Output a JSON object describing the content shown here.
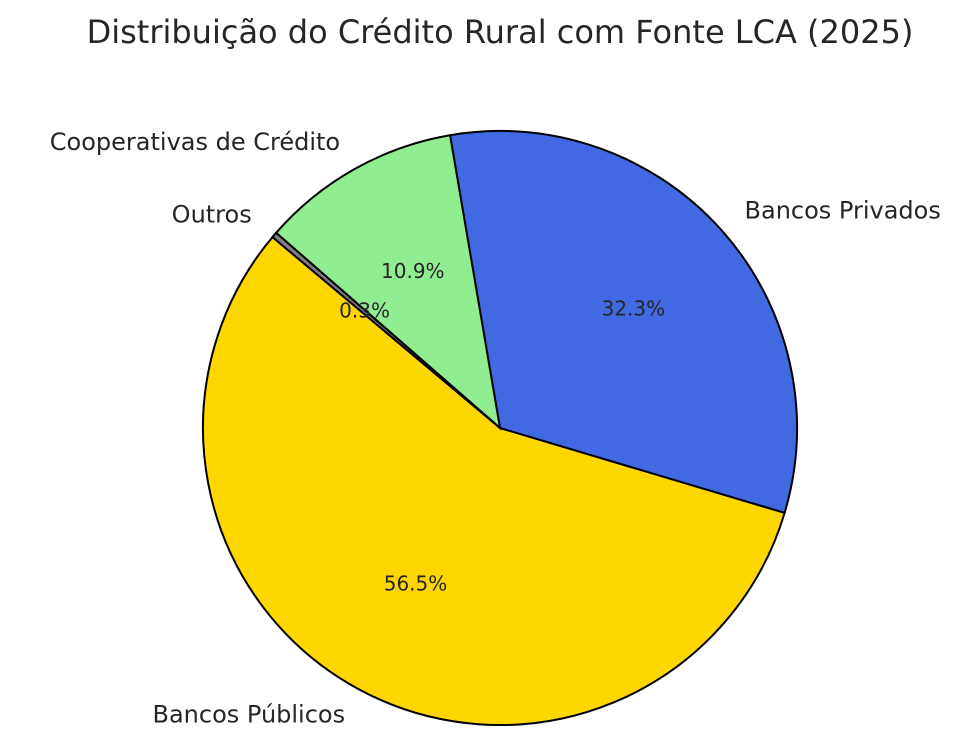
{
  "chart_data": {
    "type": "pie",
    "title": "Distribuição do Crédito Rural com Fonte LCA (2025)",
    "categories": [
      "Bancos Públicos",
      "Bancos Privados",
      "Cooperativas de Crédito",
      "Outros"
    ],
    "values": [
      56.5,
      32.3,
      10.9,
      0.3
    ],
    "value_labels": [
      "56.5%",
      "32.3%",
      "10.9%",
      "0.3%"
    ],
    "colors": [
      "#ffd700",
      "#4169e1",
      "#90ee90",
      "#808080"
    ]
  }
}
